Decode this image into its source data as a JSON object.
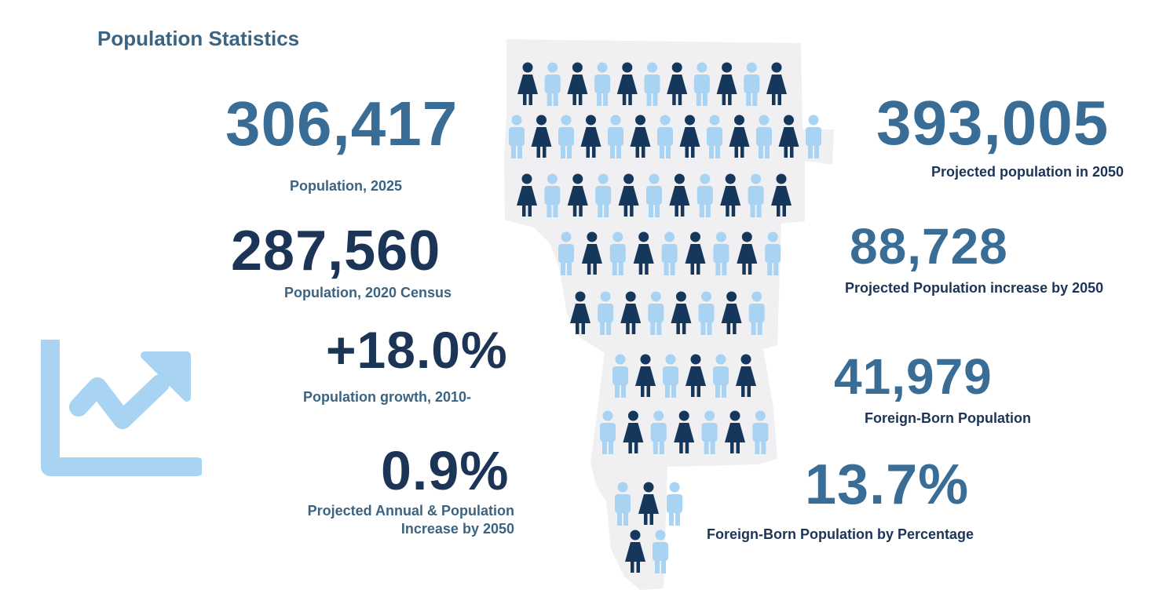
{
  "title": "Population Statistics",
  "left": {
    "pop2025": {
      "value": "306,417",
      "label": "Population,  2025"
    },
    "census2020": {
      "value": "287,560",
      "label": "Population, 2020 Census"
    },
    "growth": {
      "value": "+18.0%",
      "label": "Population growth, 2010-"
    },
    "annual": {
      "value": "0.9%",
      "label_line1": "Projected Annual & Population",
      "label_line2": "Increase by 2050"
    }
  },
  "right": {
    "proj2050": {
      "value": "393,005",
      "label": "Projected population in 2050"
    },
    "increase": {
      "value": "88,728",
      "label": "Projected Population increase by 2050"
    },
    "foreign": {
      "value": "41,979",
      "label": "Foreign-Born Population"
    },
    "foreign_pct": {
      "value": "13.7%",
      "label": "Foreign-Born Population by Percentage"
    }
  },
  "icons": {
    "trend": "trend-up-chart-icon",
    "person_male": "person-male-icon",
    "person_female": "person-female-icon"
  },
  "colors": {
    "dark_navy": "#16375c",
    "light_blue": "#a9d3f2",
    "mid_blue": "#3a6d95",
    "title": "#3b6482",
    "map_bg": "#f0eff1"
  }
}
